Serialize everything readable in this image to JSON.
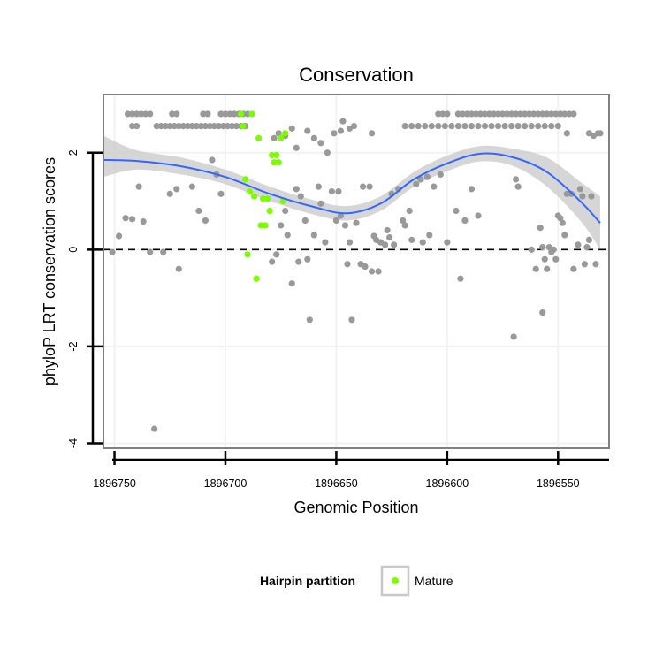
{
  "chart_data": {
    "type": "scatter",
    "title": "Conservation",
    "xlabel": "Genomic Position",
    "ylabel": "phyloP LRT conservation scores",
    "x_reversed": true,
    "xlim": [
      1896755,
      1896527
    ],
    "ylim": [
      -4.1,
      3.2
    ],
    "x_ticks": [
      1896750,
      1896700,
      1896650,
      1896600,
      1896550
    ],
    "y_ticks": [
      -4,
      -2,
      0,
      2
    ],
    "reference_line": {
      "y": 0,
      "style": "dashed"
    },
    "grid": true,
    "legend": {
      "title": "Hairpin partition",
      "entries": [
        "Mature"
      ],
      "placement": "bottom"
    },
    "colors": {
      "other": "#999999",
      "mature": "#7CFC00",
      "smooth": "#3366FF",
      "ribbon": "#C8C8C8",
      "panel_border": "#808080",
      "grid": "#F2F2F2"
    },
    "series": [
      {
        "name": "",
        "points": [
          [
            1896744,
            2.8
          ],
          [
            1896742,
            2.8
          ],
          [
            1896740,
            2.8
          ],
          [
            1896738,
            2.8
          ],
          [
            1896736,
            2.8
          ],
          [
            1896734,
            2.8
          ],
          [
            1896742,
            2.55
          ],
          [
            1896740,
            2.55
          ],
          [
            1896731,
            2.55
          ],
          [
            1896729,
            2.55
          ],
          [
            1896727,
            2.55
          ],
          [
            1896725,
            2.55
          ],
          [
            1896723,
            2.55
          ],
          [
            1896721,
            2.55
          ],
          [
            1896719,
            2.55
          ],
          [
            1896717,
            2.55
          ],
          [
            1896715,
            2.55
          ],
          [
            1896713,
            2.55
          ],
          [
            1896711,
            2.55
          ],
          [
            1896709,
            2.55
          ],
          [
            1896707,
            2.55
          ],
          [
            1896705,
            2.55
          ],
          [
            1896703,
            2.55
          ],
          [
            1896701,
            2.55
          ],
          [
            1896699,
            2.55
          ],
          [
            1896697,
            2.55
          ],
          [
            1896695,
            2.55
          ],
          [
            1896693,
            2.55
          ],
          [
            1896691,
            2.55
          ],
          [
            1896724,
            2.8
          ],
          [
            1896722,
            2.8
          ],
          [
            1896710,
            2.8
          ],
          [
            1896708,
            2.8
          ],
          [
            1896702,
            2.8
          ],
          [
            1896700,
            2.8
          ],
          [
            1896698,
            2.8
          ],
          [
            1896696,
            2.8
          ],
          [
            1896694,
            2.8
          ],
          [
            1896692,
            2.8
          ],
          [
            1896690,
            2.8
          ],
          [
            1896678,
            2.3
          ],
          [
            1896676,
            2.4
          ],
          [
            1896673,
            2.35
          ],
          [
            1896670,
            2.5
          ],
          [
            1896668,
            2.1
          ],
          [
            1896663,
            2.45
          ],
          [
            1896660,
            2.3
          ],
          [
            1896657,
            2.2
          ],
          [
            1896654,
            2.0
          ],
          [
            1896651,
            2.4
          ],
          [
            1896648,
            2.45
          ],
          [
            1896647,
            2.65
          ],
          [
            1896644,
            2.5
          ],
          [
            1896642,
            2.55
          ],
          [
            1896634,
            2.4
          ],
          [
            1896619,
            2.55
          ],
          [
            1896616,
            2.55
          ],
          [
            1896613,
            2.55
          ],
          [
            1896610,
            2.55
          ],
          [
            1896607,
            2.55
          ],
          [
            1896604,
            2.55
          ],
          [
            1896601,
            2.55
          ],
          [
            1896598,
            2.55
          ],
          [
            1896595,
            2.55
          ],
          [
            1896592,
            2.55
          ],
          [
            1896589,
            2.55
          ],
          [
            1896586,
            2.55
          ],
          [
            1896583,
            2.55
          ],
          [
            1896580,
            2.55
          ],
          [
            1896577,
            2.55
          ],
          [
            1896574,
            2.55
          ],
          [
            1896571,
            2.55
          ],
          [
            1896568,
            2.55
          ],
          [
            1896565,
            2.55
          ],
          [
            1896562,
            2.55
          ],
          [
            1896559,
            2.55
          ],
          [
            1896556,
            2.55
          ],
          [
            1896553,
            2.55
          ],
          [
            1896550,
            2.55
          ],
          [
            1896604,
            2.8
          ],
          [
            1896602,
            2.8
          ],
          [
            1896600,
            2.8
          ],
          [
            1896595,
            2.8
          ],
          [
            1896593,
            2.8
          ],
          [
            1896591,
            2.8
          ],
          [
            1896589,
            2.8
          ],
          [
            1896587,
            2.8
          ],
          [
            1896585,
            2.8
          ],
          [
            1896583,
            2.8
          ],
          [
            1896581,
            2.8
          ],
          [
            1896579,
            2.8
          ],
          [
            1896577,
            2.8
          ],
          [
            1896575,
            2.8
          ],
          [
            1896573,
            2.8
          ],
          [
            1896571,
            2.8
          ],
          [
            1896569,
            2.8
          ],
          [
            1896567,
            2.8
          ],
          [
            1896565,
            2.8
          ],
          [
            1896563,
            2.8
          ],
          [
            1896561,
            2.8
          ],
          [
            1896559,
            2.8
          ],
          [
            1896557,
            2.8
          ],
          [
            1896555,
            2.8
          ],
          [
            1896553,
            2.8
          ],
          [
            1896551,
            2.8
          ],
          [
            1896549,
            2.8
          ],
          [
            1896547,
            2.8
          ],
          [
            1896545,
            2.8
          ],
          [
            1896543,
            2.8
          ],
          [
            1896546,
            2.4
          ],
          [
            1896536,
            2.4
          ],
          [
            1896532,
            2.4
          ],
          [
            1896751,
            -0.05
          ],
          [
            1896748,
            0.28
          ],
          [
            1896745,
            0.65
          ],
          [
            1896742,
            0.63
          ],
          [
            1896737,
            0.58
          ],
          [
            1896739,
            1.3
          ],
          [
            1896734,
            -0.05
          ],
          [
            1896728,
            -0.05
          ],
          [
            1896725,
            1.15
          ],
          [
            1896722,
            1.25
          ],
          [
            1896721,
            -0.4
          ],
          [
            1896715,
            1.3
          ],
          [
            1896712,
            0.8
          ],
          [
            1896709,
            0.6
          ],
          [
            1896706,
            1.85
          ],
          [
            1896702,
            1.15
          ],
          [
            1896704,
            1.55
          ],
          [
            1896732,
            -3.7
          ],
          [
            1896679,
            -0.25
          ],
          [
            1896677,
            -0.1
          ],
          [
            1896675,
            0.5
          ],
          [
            1896673,
            0.8
          ],
          [
            1896672,
            0.3
          ],
          [
            1896670,
            -0.7
          ],
          [
            1896668,
            1.25
          ],
          [
            1896667,
            -0.25
          ],
          [
            1896666,
            1.1
          ],
          [
            1896664,
            0.6
          ],
          [
            1896663,
            -0.2
          ],
          [
            1896662,
            -1.45
          ],
          [
            1896660,
            0.3
          ],
          [
            1896658,
            1.3
          ],
          [
            1896657,
            0.95
          ],
          [
            1896655,
            0.15
          ],
          [
            1896652,
            1.2
          ],
          [
            1896650,
            0.6
          ],
          [
            1896649,
            1.2
          ],
          [
            1896648,
            0.7
          ],
          [
            1896646,
            0.5
          ],
          [
            1896645,
            -0.3
          ],
          [
            1896644,
            0.15
          ],
          [
            1896643,
            -1.45
          ],
          [
            1896641,
            0.55
          ],
          [
            1896639,
            -0.3
          ],
          [
            1896638,
            1.3
          ],
          [
            1896637,
            -0.35
          ],
          [
            1896635,
            1.3
          ],
          [
            1896634,
            -0.45
          ],
          [
            1896633,
            0.28
          ],
          [
            1896632,
            0.2
          ],
          [
            1896631,
            -0.45
          ],
          [
            1896630,
            0.15
          ],
          [
            1896628,
            0.1
          ],
          [
            1896627,
            0.4
          ],
          [
            1896626,
            0.25
          ],
          [
            1896625,
            1.15
          ],
          [
            1896624,
            0.1
          ],
          [
            1896622,
            1.25
          ],
          [
            1896620,
            0.6
          ],
          [
            1896619,
            0.5
          ],
          [
            1896617,
            0.8
          ],
          [
            1896616,
            0.2
          ],
          [
            1896614,
            1.35
          ],
          [
            1896612,
            1.45
          ],
          [
            1896611,
            0.15
          ],
          [
            1896609,
            1.5
          ],
          [
            1896608,
            0.3
          ],
          [
            1896606,
            1.3
          ],
          [
            1896603,
            1.55
          ],
          [
            1896600,
            0.15
          ],
          [
            1896596,
            0.8
          ],
          [
            1896594,
            -0.6
          ],
          [
            1896592,
            0.6
          ],
          [
            1896589,
            1.25
          ],
          [
            1896586,
            0.7
          ],
          [
            1896570,
            -1.8
          ],
          [
            1896569,
            1.45
          ],
          [
            1896568,
            1.3
          ],
          [
            1896562,
            0.0
          ],
          [
            1896560,
            -0.4
          ],
          [
            1896558,
            0.45
          ],
          [
            1896557,
            0.05
          ],
          [
            1896557,
            -1.3
          ],
          [
            1896556,
            -0.2
          ],
          [
            1896555,
            -0.4
          ],
          [
            1896554,
            0.05
          ],
          [
            1896553,
            -0.05
          ],
          [
            1896552,
            0.0
          ],
          [
            1896551,
            -0.2
          ],
          [
            1896550,
            0.7
          ],
          [
            1896549,
            0.65
          ],
          [
            1896548,
            0.55
          ],
          [
            1896547,
            0.3
          ],
          [
            1896546,
            1.15
          ],
          [
            1896544,
            1.15
          ],
          [
            1896543,
            -0.4
          ],
          [
            1896541,
            0.1
          ],
          [
            1896540,
            1.25
          ],
          [
            1896539,
            1.1
          ],
          [
            1896538,
            -0.3
          ],
          [
            1896537,
            0.05
          ],
          [
            1896536,
            0.2
          ],
          [
            1896534,
            2.35
          ],
          [
            1896535,
            1.1
          ],
          [
            1896533,
            -0.3
          ],
          [
            1896531,
            2.4
          ]
        ]
      },
      {
        "name": "Mature",
        "points": [
          [
            1896693,
            2.8
          ],
          [
            1896692,
            2.55
          ],
          [
            1896691,
            1.45
          ],
          [
            1896690,
            -0.1
          ],
          [
            1896689,
            1.2
          ],
          [
            1896688,
            2.8
          ],
          [
            1896687,
            1.1
          ],
          [
            1896686,
            -0.6
          ],
          [
            1896685,
            2.3
          ],
          [
            1896684,
            0.5
          ],
          [
            1896683,
            1.05
          ],
          [
            1896682,
            0.5
          ],
          [
            1896681,
            1.05
          ],
          [
            1896680,
            0.8
          ],
          [
            1896679,
            1.95
          ],
          [
            1896678,
            1.8
          ],
          [
            1896677,
            1.95
          ],
          [
            1896676,
            1.8
          ],
          [
            1896675,
            2.3
          ],
          [
            1896674,
            1.0
          ],
          [
            1896673,
            2.4
          ]
        ]
      }
    ],
    "smooth": {
      "x": [
        1896755,
        1896740,
        1896720,
        1896700,
        1896680,
        1896660,
        1896645,
        1896630,
        1896615,
        1896600,
        1896585,
        1896570,
        1896555,
        1896540,
        1896531
      ],
      "y": [
        1.85,
        1.83,
        1.72,
        1.5,
        1.15,
        0.88,
        0.75,
        0.95,
        1.45,
        1.78,
        1.98,
        1.9,
        1.6,
        1.0,
        0.55
      ],
      "lower": [
        1.5,
        1.65,
        1.55,
        1.35,
        1.0,
        0.72,
        0.6,
        0.8,
        1.3,
        1.62,
        1.82,
        1.72,
        1.3,
        0.6,
        -0.0
      ],
      "upper": [
        2.35,
        2.05,
        1.9,
        1.65,
        1.3,
        1.02,
        0.9,
        1.1,
        1.6,
        1.94,
        2.14,
        2.08,
        1.9,
        1.4,
        1.1
      ]
    }
  }
}
